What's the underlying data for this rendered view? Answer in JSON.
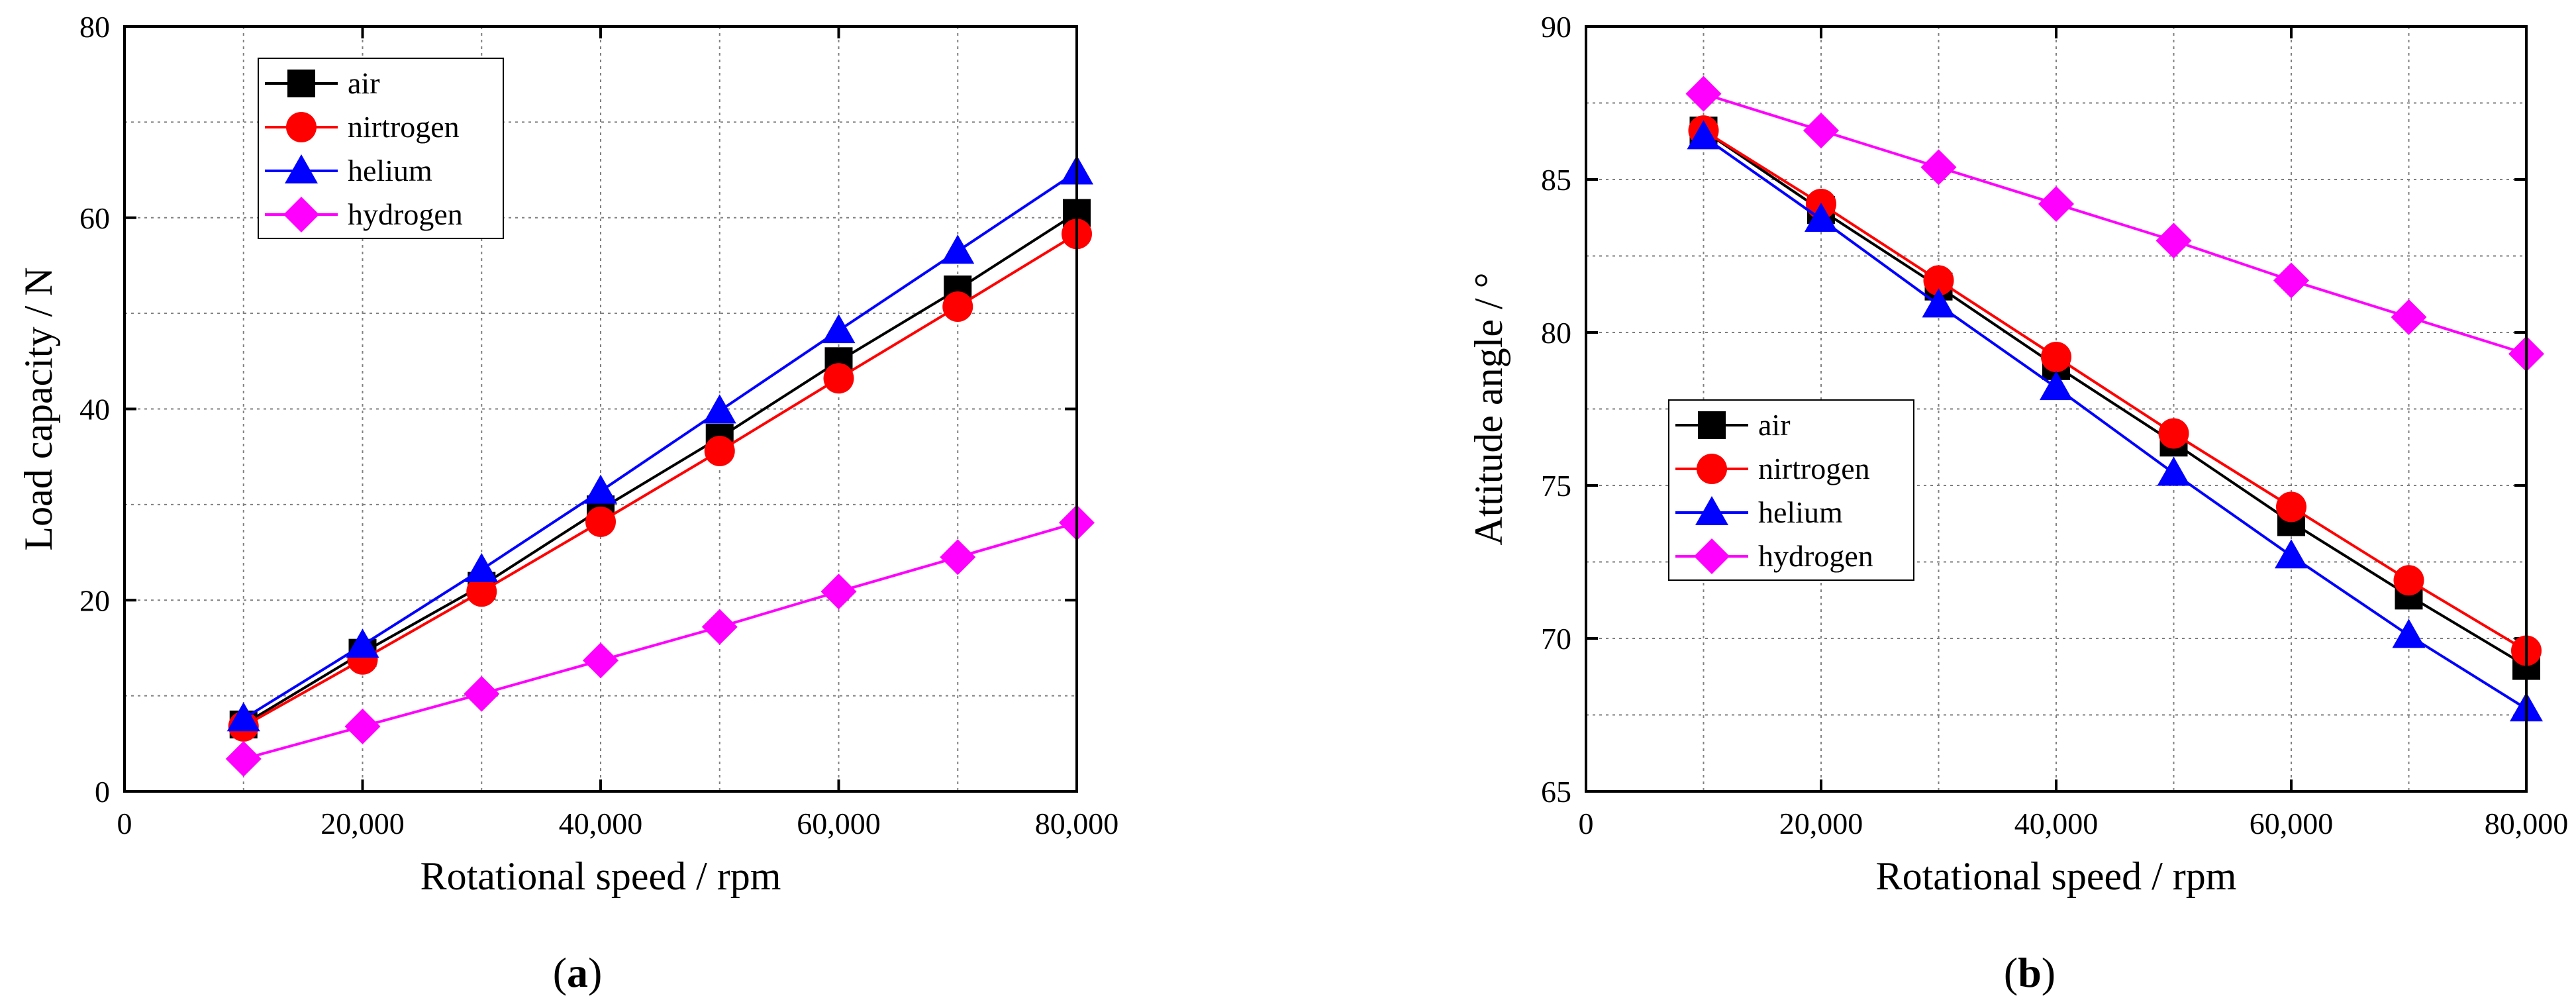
{
  "chart_data": [
    {
      "type": "line",
      "panel_label_prefix": "(",
      "panel_label": "a",
      "panel_label_suffix": ")",
      "title": "",
      "xlabel": "Rotational speed / rpm",
      "ylabel": "Load capacity / N",
      "xlim": [
        0,
        80000
      ],
      "ylim": [
        0,
        80
      ],
      "xticks": [
        0,
        20000,
        40000,
        60000,
        80000
      ],
      "xtick_labels": [
        "0",
        "20,000",
        "40,000",
        "60,000",
        "80,000"
      ],
      "yticks": [
        0,
        20,
        40,
        60,
        80
      ],
      "ytick_labels": [
        "0",
        "20",
        "40",
        "60",
        "80"
      ],
      "grid": true,
      "legend_position": "top-left",
      "x": [
        10000,
        20000,
        30000,
        40000,
        50000,
        60000,
        70000,
        80000
      ],
      "series": [
        {
          "name": "air",
          "color": "#000000",
          "marker": "square",
          "values": [
            7.0,
            14.5,
            21.5,
            29.5,
            37.0,
            45.0,
            52.5,
            60.5
          ]
        },
        {
          "name": "nirtrogen",
          "color": "#ff0000",
          "marker": "circle",
          "values": [
            6.8,
            13.8,
            20.9,
            28.2,
            35.6,
            43.2,
            50.7,
            58.3
          ]
        },
        {
          "name": "helium",
          "color": "#0000ff",
          "marker": "triangle",
          "values": [
            7.6,
            15.3,
            23.2,
            31.4,
            39.8,
            48.2,
            56.5,
            64.8
          ]
        },
        {
          "name": "hydrogen",
          "color": "#ff00ff",
          "marker": "diamond",
          "values": [
            3.4,
            6.8,
            10.2,
            13.7,
            17.2,
            20.9,
            24.5,
            28.1
          ]
        }
      ]
    },
    {
      "type": "line",
      "panel_label_prefix": "(",
      "panel_label": "b",
      "panel_label_suffix": ")",
      "title": "",
      "xlabel": "Rotational speed / rpm",
      "ylabel": "Attitude angle / °",
      "xlim": [
        0,
        80000
      ],
      "ylim": [
        65,
        90
      ],
      "xticks": [
        0,
        20000,
        40000,
        60000,
        80000
      ],
      "xtick_labels": [
        "0",
        "20,000",
        "40,000",
        "60,000",
        "80,000"
      ],
      "yticks": [
        65,
        70,
        75,
        80,
        85,
        90
      ],
      "ytick_labels": [
        "65",
        "70",
        "75",
        "80",
        "85",
        "90"
      ],
      "grid": true,
      "legend_position": "center-left",
      "x": [
        10000,
        20000,
        30000,
        40000,
        50000,
        60000,
        70000,
        80000
      ],
      "series": [
        {
          "name": "air",
          "color": "#000000",
          "marker": "square",
          "values": [
            86.6,
            84.0,
            81.5,
            78.9,
            76.4,
            73.8,
            71.4,
            69.1
          ]
        },
        {
          "name": "nirtrogen",
          "color": "#ff0000",
          "marker": "circle",
          "values": [
            86.6,
            84.2,
            81.7,
            79.2,
            76.7,
            74.3,
            71.9,
            69.6
          ]
        },
        {
          "name": "helium",
          "color": "#0000ff",
          "marker": "triangle",
          "values": [
            86.4,
            83.7,
            80.9,
            78.2,
            75.4,
            72.7,
            70.1,
            67.7
          ]
        },
        {
          "name": "hydrogen",
          "color": "#ff00ff",
          "marker": "diamond",
          "values": [
            87.8,
            86.6,
            85.4,
            84.2,
            83.0,
            81.7,
            80.5,
            79.3
          ]
        }
      ]
    }
  ]
}
